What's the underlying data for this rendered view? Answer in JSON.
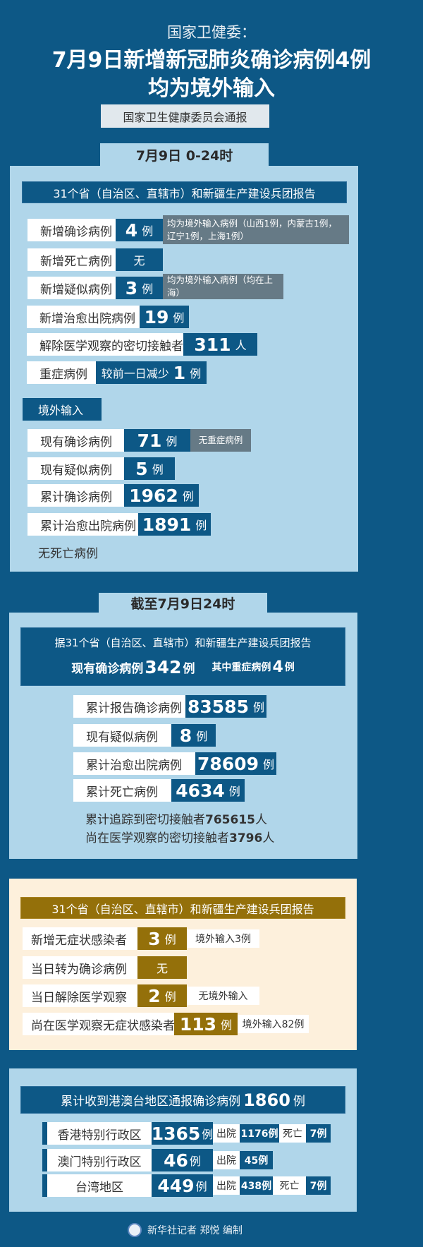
{
  "header": {
    "kicker": "国家卫健委：",
    "title_line1": "7月9日新增新冠肺炎确诊病例4例",
    "title_line2": "均为境外输入",
    "source": "国家卫生健康委员会通报"
  },
  "colors": {
    "background": "#0d5886",
    "panel_blue": "#b0d6ea",
    "panel_cream": "#fdf0dc",
    "gold": "#94700a",
    "note_grey": "#667a86"
  },
  "section1": {
    "tab": "7月9日 0-24时",
    "report_header": "31个省（自治区、直辖市）和新疆生产建设兵团报告",
    "rows": [
      {
        "label": "新增确诊病例",
        "value": "4",
        "unit": "例",
        "note": "均为境外输入病例（山西1例，内蒙古1例，辽宁1例，上海1例）"
      },
      {
        "label": "新增死亡病例",
        "value": "",
        "unit": "无"
      },
      {
        "label": "新增疑似病例",
        "value": "3",
        "unit": "例",
        "note": "均为境外输入病例（均在上海）"
      },
      {
        "label": "新增治愈出院病例",
        "value": "19",
        "unit": "例"
      },
      {
        "label": "解除医学观察的密切接触者",
        "value": "311",
        "unit": "人"
      },
      {
        "label": "重症病例",
        "prefix": "较前一日减少",
        "value": "1",
        "unit": "例"
      }
    ],
    "imported": {
      "tag": "境外输入",
      "rows": [
        {
          "label": "现有确诊病例",
          "value": "71",
          "unit": "例",
          "note": "无重症病例"
        },
        {
          "label": "现有疑似病例",
          "value": "5",
          "unit": "例"
        },
        {
          "label": "累计确诊病例",
          "value": "1962",
          "unit": "例"
        },
        {
          "label": "累计治愈出院病例",
          "value": "1891",
          "unit": "例"
        }
      ],
      "footnote": "无死亡病例"
    }
  },
  "section2": {
    "tab": "截至7月9日24时",
    "report_header": "据31个省（自治区、直辖市）和新疆生产建设兵团报告",
    "current_label": "现有确诊病例",
    "current_value": "342",
    "current_unit": "例",
    "severe_label": "其中重症病例",
    "severe_value": "4",
    "severe_unit": "例",
    "rows": [
      {
        "label": "累计报告确诊病例",
        "value": "83585",
        "unit": "例"
      },
      {
        "label": "现有疑似病例",
        "value": "8",
        "unit": "例"
      },
      {
        "label": "累计治愈出院病例",
        "value": "78609",
        "unit": "例"
      },
      {
        "label": "累计死亡病例",
        "value": "4634",
        "unit": "例"
      }
    ],
    "contacts_traced_label": "累计追踪到密切接触者",
    "contacts_traced_value": "765615",
    "contacts_traced_unit": "人",
    "contacts_obs_label": "尚在医学观察的密切接触者",
    "contacts_obs_value": "3796",
    "contacts_obs_unit": "人"
  },
  "section3": {
    "report_header": "31个省（自治区、直辖市）和新疆生产建设兵团报告",
    "rows": [
      {
        "label": "新增无症状感染者",
        "value": "3",
        "unit": "例",
        "note": "境外输入3例"
      },
      {
        "label": "当日转为确诊病例",
        "value": "",
        "unit": "无"
      },
      {
        "label": "当日解除医学观察",
        "value": "2",
        "unit": "例",
        "note": "无境外输入"
      },
      {
        "label": "尚在医学观察无症状感染者",
        "value": "113",
        "unit": "例",
        "note": "境外输入82例"
      }
    ]
  },
  "section4": {
    "header_label": "累计收到港澳台地区通报确诊病例",
    "header_value": "1860",
    "header_unit": "例",
    "rows": [
      {
        "region": "香港特别行政区",
        "value": "1365",
        "unit": "例",
        "discharged_label": "出院",
        "discharged": "1176例",
        "death_label": "死亡",
        "deaths": "7例"
      },
      {
        "region": "澳门特别行政区",
        "value": "46",
        "unit": "例",
        "discharged_label": "出院",
        "discharged": "45例"
      },
      {
        "region": "台湾地区",
        "value": "449",
        "unit": "例",
        "discharged_label": "出院",
        "discharged": "438例",
        "death_label": "死亡",
        "deaths": "7例"
      }
    ]
  },
  "footer": {
    "credit": "新华社记者 郑悦 编制",
    "logo": "xinhua-logo"
  }
}
